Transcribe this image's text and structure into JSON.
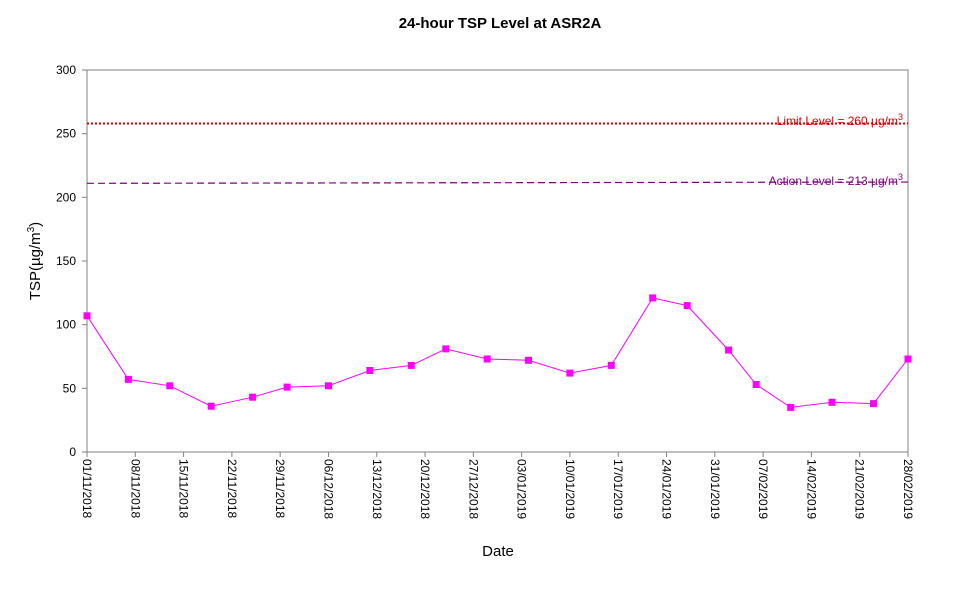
{
  "chart_data": {
    "type": "line",
    "title": "24-hour TSP Level at ASR2A",
    "xlabel": "Date",
    "ylabel": "TSP(µg/m³)",
    "ylabel_main": "TSP(",
    "ylabel_unit": "µg/m",
    "ylabel_sup": "3",
    "ylabel_close": ")",
    "ylim": [
      0,
      300
    ],
    "yticks": [
      0,
      50,
      100,
      150,
      200,
      250,
      300
    ],
    "xlim": [
      "2018-11-01",
      "2019-02-28"
    ],
    "xticks": [
      "01/11/2018",
      "08/11/2018",
      "15/11/2018",
      "22/11/2018",
      "29/11/2018",
      "06/12/2018",
      "13/12/2018",
      "20/12/2018",
      "27/12/2018",
      "03/01/2019",
      "10/01/2019",
      "17/01/2019",
      "24/01/2019",
      "31/01/2019",
      "07/02/2019",
      "14/02/2019",
      "21/02/2019",
      "28/02/2019"
    ],
    "grid": false,
    "series": [
      {
        "color": "#ff00ff",
        "marker": "square",
        "x": [
          "2018-11-01",
          "2018-11-07",
          "2018-11-13",
          "2018-11-19",
          "2018-11-25",
          "2018-11-30",
          "2018-12-06",
          "2018-12-12",
          "2018-12-18",
          "2018-12-23",
          "2018-12-29",
          "2019-01-04",
          "2019-01-10",
          "2019-01-16",
          "2019-01-22",
          "2019-01-27",
          "2019-02-02",
          "2019-02-06",
          "2019-02-11",
          "2019-02-17",
          "2019-02-23",
          "2019-02-28"
        ],
        "y": [
          107,
          57,
          52,
          36,
          43,
          51,
          52,
          64,
          68,
          81,
          73,
          72,
          62,
          68,
          121,
          115,
          80,
          53,
          35,
          39,
          38,
          73
        ]
      }
    ],
    "reference_lines": [
      {
        "label": "Limit Level  = 260 µg/m³",
        "text": "Limit Level  = 260 µg/m",
        "sup": "3",
        "value": 260,
        "y_start": 258,
        "y_end": 258,
        "color": "#dd0000",
        "style": "dotted"
      },
      {
        "label": "Action Level  = 213 µg/m³",
        "text": "Action Level  = 213 µg/m",
        "sup": "3",
        "value": 213,
        "y_start": 211,
        "y_end": 212,
        "color": "#800080",
        "style": "dashed"
      }
    ]
  }
}
